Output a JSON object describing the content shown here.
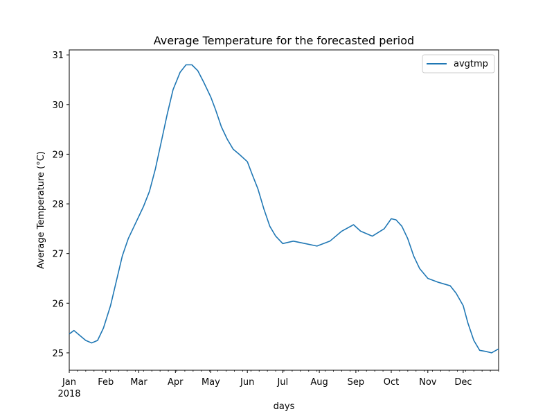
{
  "chart_data": {
    "type": "line",
    "title": "Average Temperature for the forecasted period",
    "xlabel": "days",
    "ylabel": "Average Temperature (°C)",
    "x_start": "2018-01-01",
    "x_end": "2018-12-31",
    "ylim": [
      24.65,
      31.1
    ],
    "y_ticks": [
      25,
      26,
      27,
      28,
      29,
      30,
      31
    ],
    "x_tick_labels": [
      "Jan",
      "Feb",
      "Mar",
      "Apr",
      "May",
      "Jun",
      "Jul",
      "Aug",
      "Sep",
      "Oct",
      "Nov",
      "Dec"
    ],
    "x_year_label": "2018",
    "grid": false,
    "legend": {
      "position": "top-right",
      "entries": [
        "avgtmp"
      ]
    },
    "colors": {
      "series": "#1f77b4"
    },
    "series": [
      {
        "name": "avgtmp",
        "points": [
          [
            "2018-01-01",
            25.38
          ],
          [
            "2018-01-05",
            25.45
          ],
          [
            "2018-01-10",
            25.35
          ],
          [
            "2018-01-15",
            25.25
          ],
          [
            "2018-01-20",
            25.2
          ],
          [
            "2018-01-25",
            25.25
          ],
          [
            "2018-01-30",
            25.5
          ],
          [
            "2018-02-05",
            25.95
          ],
          [
            "2018-02-10",
            26.45
          ],
          [
            "2018-02-15",
            26.95
          ],
          [
            "2018-02-20",
            27.3
          ],
          [
            "2018-02-25",
            27.55
          ],
          [
            "2018-03-01",
            27.75
          ],
          [
            "2018-03-05",
            27.95
          ],
          [
            "2018-03-10",
            28.25
          ],
          [
            "2018-03-15",
            28.7
          ],
          [
            "2018-03-20",
            29.25
          ],
          [
            "2018-03-25",
            29.8
          ],
          [
            "2018-03-30",
            30.3
          ],
          [
            "2018-04-05",
            30.65
          ],
          [
            "2018-04-10",
            30.8
          ],
          [
            "2018-04-15",
            30.8
          ],
          [
            "2018-04-20",
            30.68
          ],
          [
            "2018-04-25",
            30.45
          ],
          [
            "2018-05-01",
            30.15
          ],
          [
            "2018-05-05",
            29.9
          ],
          [
            "2018-05-10",
            29.55
          ],
          [
            "2018-05-15",
            29.3
          ],
          [
            "2018-05-20",
            29.1
          ],
          [
            "2018-05-25",
            29.0
          ],
          [
            "2018-06-01",
            28.85
          ],
          [
            "2018-06-05",
            28.6
          ],
          [
            "2018-06-10",
            28.3
          ],
          [
            "2018-06-15",
            27.9
          ],
          [
            "2018-06-20",
            27.55
          ],
          [
            "2018-06-25",
            27.35
          ],
          [
            "2018-07-01",
            27.2
          ],
          [
            "2018-07-10",
            27.25
          ],
          [
            "2018-07-20",
            27.2
          ],
          [
            "2018-07-30",
            27.15
          ],
          [
            "2018-08-10",
            27.25
          ],
          [
            "2018-08-20",
            27.45
          ],
          [
            "2018-08-30",
            27.58
          ],
          [
            "2018-09-05",
            27.45
          ],
          [
            "2018-09-15",
            27.35
          ],
          [
            "2018-09-25",
            27.5
          ],
          [
            "2018-10-01",
            27.7
          ],
          [
            "2018-10-05",
            27.68
          ],
          [
            "2018-10-10",
            27.55
          ],
          [
            "2018-10-15",
            27.3
          ],
          [
            "2018-10-20",
            26.95
          ],
          [
            "2018-10-25",
            26.7
          ],
          [
            "2018-11-01",
            26.5
          ],
          [
            "2018-11-10",
            26.42
          ],
          [
            "2018-11-20",
            26.35
          ],
          [
            "2018-11-25",
            26.2
          ],
          [
            "2018-12-01",
            25.95
          ],
          [
            "2018-12-05",
            25.6
          ],
          [
            "2018-12-10",
            25.25
          ],
          [
            "2018-12-15",
            25.05
          ],
          [
            "2018-12-20",
            25.03
          ],
          [
            "2018-12-25",
            25.0
          ],
          [
            "2018-12-31",
            25.08
          ]
        ]
      }
    ]
  }
}
